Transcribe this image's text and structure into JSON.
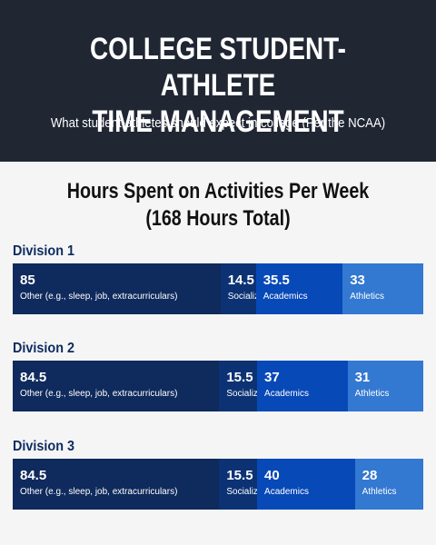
{
  "header": {
    "title_line1": "COLLEGE STUDENT-ATHLETE",
    "title_line2": "TIME MANAGEMENT",
    "subtitle": "What student-athletes should expect in college (Per the NCAA)"
  },
  "chart_data": {
    "type": "bar",
    "stacked": true,
    "orientation": "horizontal",
    "title_line1": "Hours Spent on Activities Per Week",
    "title_line2": "(168 Hours Total)",
    "total": 168,
    "categories": [
      "Division 1",
      "Division 2",
      "Division 3"
    ],
    "series": [
      {
        "name": "Other (e.g., sleep, job, extracurriculars)",
        "values": [
          85,
          84.5,
          84.5
        ],
        "color": "#0f2a5c"
      },
      {
        "name": "Socializing",
        "values": [
          14.5,
          15.5,
          15.5
        ],
        "color": "#0c3273"
      },
      {
        "name": "Academics",
        "values": [
          35.5,
          37,
          40
        ],
        "color": "#0849b8"
      },
      {
        "name": "Athletics",
        "values": [
          33,
          31,
          28
        ],
        "color": "#3378d1"
      }
    ],
    "value_labels": [
      [
        "85",
        "14.5",
        "35.5",
        "33"
      ],
      [
        "84.5",
        "15.5",
        "37",
        "31"
      ],
      [
        "84.5",
        "15.5",
        "40",
        "28"
      ]
    ],
    "legend": "inline"
  }
}
